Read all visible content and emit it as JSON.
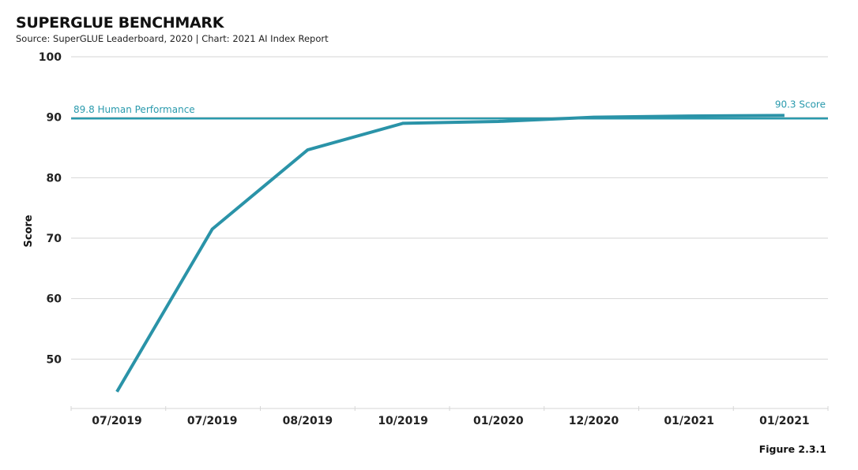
{
  "header": {
    "title": "SUPERGLUE BENCHMARK",
    "subtitle": "Source: SuperGLUE Leaderboard, 2020 | Chart: 2021 AI Index Report"
  },
  "footer": {
    "figure_label": "Figure 2.3.1"
  },
  "colors": {
    "series": "#2a93a8",
    "reference": "#2a9aad",
    "grid": "#d6d6d6"
  },
  "chart_data": {
    "type": "line",
    "title": "SUPERGLUE BENCHMARK",
    "xlabel": "",
    "ylabel": "Score",
    "ylim": [
      40,
      100
    ],
    "yticks": [
      50,
      60,
      70,
      80,
      90,
      100
    ],
    "grid": true,
    "categories": [
      "07/2019",
      "07/2019",
      "08/2019",
      "10/2019",
      "01/2020",
      "12/2020",
      "01/2021",
      "01/2021"
    ],
    "series": [
      {
        "values": [
          44.6,
          71.5,
          84.6,
          89.0,
          89.3,
          90.0,
          90.2,
          90.3
        ]
      }
    ],
    "reference_line": {
      "value": 89.8,
      "label": "89.8 Human Performance"
    },
    "annotations": [
      {
        "category_index": 7,
        "value": 90.3,
        "text": "90.3 Score"
      }
    ]
  }
}
